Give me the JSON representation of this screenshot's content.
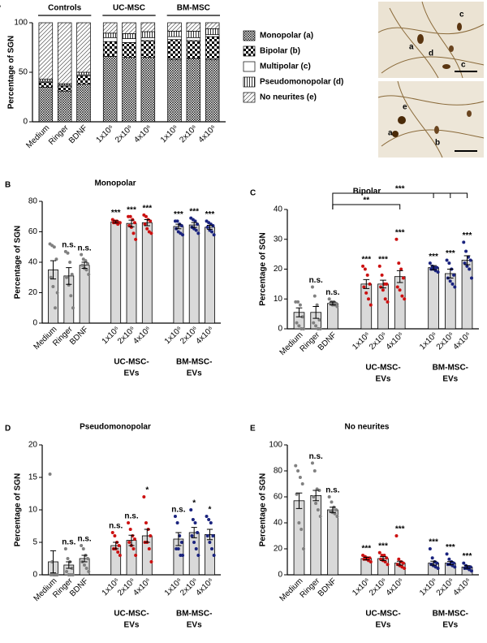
{
  "chart_data": [
    {
      "type": "stacked_bar",
      "label": "A",
      "ylabel": "Percentage of SGN",
      "categories": [
        "Medium",
        "Ringer",
        "BDNF",
        "1x10⁶",
        "2x10⁶",
        "4x10⁶",
        "1x10⁶",
        "2x10⁶",
        "4x10⁶"
      ],
      "groups": [
        "Controls",
        "UC-MSC",
        "BM-MSC"
      ],
      "ylim": [
        0,
        100
      ],
      "yticks": [
        0,
        50,
        100
      ],
      "series": [
        {
          "name": "Monopolar (a)",
          "pattern": "crosshatch",
          "values": [
            35,
            31,
            38,
            66,
            65,
            65,
            63,
            64,
            63
          ]
        },
        {
          "name": "Bipolar (b)",
          "pattern": "checker",
          "values": [
            5,
            5,
            8.5,
            15,
            15,
            17,
            20,
            18,
            23
          ]
        },
        {
          "name": "Multipolar (c)",
          "pattern": "blank",
          "values": [
            1,
            1,
            1,
            4,
            4,
            3,
            3,
            3,
            2
          ]
        },
        {
          "name": "Pseudomonopolar (d)",
          "pattern": "vertical",
          "values": [
            2,
            1.5,
            2.5,
            4.5,
            5,
            6,
            5.5,
            6.5,
            6
          ]
        },
        {
          "name": "No neurites (e)",
          "pattern": "diagonal",
          "values": [
            57,
            61.5,
            50,
            10.5,
            11,
            9,
            8.5,
            8.5,
            6
          ]
        }
      ],
      "micrographs": {
        "top": [
          "c",
          "a",
          "d",
          "c"
        ],
        "bottom": [
          "e",
          "a",
          "b"
        ]
      }
    },
    {
      "type": "bar",
      "label": "B",
      "title": "Monopolar",
      "ylabel": "Percentage of SGN",
      "categories": [
        "Medium",
        "Ringer",
        "BDNF",
        "1x10⁶",
        "2x10⁶",
        "4x10⁶",
        "1x10⁶",
        "2x10⁶",
        "4x10⁶"
      ],
      "group_labels": [
        [
          "UC-MSC-",
          "EVs"
        ],
        [
          "BM-MSC-",
          "EVs"
        ]
      ],
      "ylim": [
        0,
        80
      ],
      "yticks": [
        0,
        20,
        40,
        60,
        80
      ],
      "bar_color": "#d9d9d9",
      "point_colors": [
        "#808080",
        "#cc1111",
        "#1a237e"
      ],
      "values": [
        35,
        31,
        38,
        66.5,
        65.5,
        66,
        63.5,
        64.5,
        63
      ],
      "errors": [
        6,
        5.5,
        2,
        0.7,
        2.2,
        2,
        1.5,
        1.6,
        1.3
      ],
      "significance": [
        null,
        "n.s.",
        "n.s.",
        "***",
        "***",
        "***",
        "***",
        "***",
        "***"
      ],
      "points": [
        [
          52,
          51,
          50,
          42,
          30,
          24,
          10,
          20
        ],
        [
          47,
          46,
          40,
          32,
          30,
          25,
          18,
          10
        ],
        [
          45,
          42,
          41,
          39,
          38,
          36,
          35,
          32
        ],
        [
          68,
          67,
          67,
          66,
          66,
          66,
          65,
          66
        ],
        [
          70,
          70,
          68,
          66,
          64,
          63,
          59,
          55
        ],
        [
          71,
          70,
          68,
          67,
          65,
          62,
          60,
          59
        ],
        [
          67,
          67,
          65,
          64,
          62,
          60,
          59,
          58
        ],
        [
          69,
          68,
          67,
          65,
          63,
          62,
          61,
          59
        ],
        [
          67,
          66,
          65,
          64,
          63,
          61,
          60,
          58
        ]
      ]
    },
    {
      "type": "bar",
      "label": "C",
      "title": "Bipolar",
      "ylabel": "Percentage of SGN",
      "categories": [
        "Medium",
        "Ringer",
        "BDNF",
        "1x10⁶",
        "2x10⁶",
        "4x10⁶",
        "1x10⁶",
        "2x10⁶",
        "4x10⁶"
      ],
      "group_labels": [
        [
          "UC-MSC-",
          "EVs"
        ],
        [
          "BM-MSC-",
          "EVs"
        ]
      ],
      "ylim": [
        0,
        40
      ],
      "yticks": [
        0,
        10,
        20,
        30,
        40
      ],
      "bar_color": "#d9d9d9",
      "point_colors": [
        "#808080",
        "#cc1111",
        "#1a237e"
      ],
      "values": [
        5.5,
        5.5,
        8.5,
        15,
        15,
        17.5,
        20.5,
        18.5,
        23
      ],
      "errors": [
        1.5,
        2,
        0.5,
        1.5,
        1.3,
        2,
        0.7,
        1.5,
        1.5
      ],
      "significance": [
        null,
        "n.s.",
        "n.s.",
        "***",
        "***",
        "***",
        "***",
        "***",
        "***"
      ],
      "comparisons": [
        "**",
        "***"
      ],
      "points": [
        [
          9,
          9,
          8,
          4,
          2,
          1,
          0,
          0
        ],
        [
          14,
          11,
          8,
          3,
          2,
          1,
          0,
          0
        ],
        [
          10,
          9,
          9,
          8.5,
          8.5,
          8,
          8,
          7.5
        ],
        [
          21,
          20,
          18,
          15,
          14,
          12,
          10,
          8
        ],
        [
          21,
          18,
          15,
          15,
          14,
          13,
          10,
          9
        ],
        [
          30,
          22,
          20,
          17,
          14,
          13,
          11,
          10
        ],
        [
          22,
          21,
          20.5,
          20.5,
          20,
          20,
          19.5,
          19
        ],
        [
          23,
          22,
          20,
          18,
          17,
          16,
          15,
          14
        ],
        [
          29,
          26,
          24,
          23,
          22,
          21,
          20,
          17
        ]
      ]
    },
    {
      "type": "bar",
      "label": "D",
      "title": "Pseudomonopolar",
      "ylabel": "Percentage of SGN",
      "categories": [
        "Medium",
        "Ringer",
        "BDNF",
        "1x10⁶",
        "2x10⁶",
        "4x10⁶",
        "1x10⁶",
        "2x10⁶",
        "4x10⁶"
      ],
      "group_labels": [
        [
          "UC-MSC-",
          "EVs"
        ],
        [
          "BM-MSC-",
          "EVs"
        ]
      ],
      "ylim": [
        0,
        20
      ],
      "yticks": [
        0,
        5,
        10,
        15,
        20
      ],
      "bar_color": "#d9d9d9",
      "point_colors": [
        "#808080",
        "#cc1111",
        "#1a237e"
      ],
      "values": [
        2,
        1.5,
        2.5,
        4.5,
        5.3,
        6,
        5.5,
        6.5,
        6.2
      ],
      "errors": [
        1.7,
        0.5,
        0.5,
        0.5,
        0.8,
        1,
        1,
        0.8,
        0.8
      ],
      "significance": [
        null,
        "n.s.",
        "n.s.",
        "n.s.",
        "n.s.",
        "*",
        "n.s.",
        "*",
        "*"
      ],
      "points": [
        [
          15.5,
          2,
          0,
          0,
          0,
          0,
          0,
          0
        ],
        [
          4,
          2.5,
          2,
          1,
          0.5,
          0,
          0,
          0
        ],
        [
          4.5,
          4,
          3,
          2.5,
          2,
          1.5,
          1,
          0.5
        ],
        [
          6.5,
          6,
          5,
          4.5,
          4,
          4,
          3.5,
          3
        ],
        [
          8,
          7,
          6,
          5.5,
          5,
          4.5,
          4,
          3
        ],
        [
          12,
          8,
          7,
          6,
          5,
          5,
          4,
          2
        ],
        [
          9,
          8,
          6,
          5,
          4,
          4,
          3,
          3
        ],
        [
          10,
          8.5,
          8,
          6.5,
          6,
          5,
          4,
          3
        ],
        [
          9,
          8.5,
          8,
          6,
          6,
          5,
          4,
          3
        ]
      ]
    },
    {
      "type": "bar",
      "label": "E",
      "title": "No neurites",
      "ylabel": "Percentage of SGN",
      "categories": [
        "Medium",
        "Ringer",
        "BDNF",
        "1x10⁶",
        "2x10⁶",
        "4x10⁶",
        "1x10⁶",
        "2x10⁶",
        "4x10⁶"
      ],
      "group_labels": [
        [
          "UC-MSC-",
          "EVs"
        ],
        [
          "BM-MSC-",
          "EVs"
        ]
      ],
      "ylim": [
        0,
        100
      ],
      "yticks": [
        0,
        20,
        40,
        60,
        80,
        100
      ],
      "bar_color": "#d9d9d9",
      "point_colors": [
        "#808080",
        "#cc1111",
        "#1a237e"
      ],
      "values": [
        57,
        61,
        50,
        12.5,
        12.5,
        9,
        9,
        9,
        6
      ],
      "errors": [
        6,
        4,
        2,
        1,
        1.5,
        1.5,
        1.5,
        1.2,
        1
      ],
      "significance": [
        null,
        "n.s.",
        "n.s.",
        "***",
        "***",
        "***",
        "***",
        "***",
        "***"
      ],
      "points": [
        [
          84,
          80,
          75,
          70,
          62,
          40,
          35,
          20
        ],
        [
          86,
          80,
          66,
          65,
          60,
          55,
          50,
          45
        ],
        [
          60,
          56,
          52,
          50,
          49,
          48,
          47,
          45
        ],
        [
          15,
          14,
          13,
          13,
          12,
          12,
          11,
          10
        ],
        [
          17,
          15,
          15,
          13,
          12,
          11,
          10,
          8
        ],
        [
          30,
          12,
          10,
          9,
          8,
          7,
          6,
          5
        ],
        [
          20,
          13,
          10,
          9,
          8,
          7,
          6,
          5
        ],
        [
          16,
          12,
          10,
          9,
          8,
          8,
          7,
          6
        ],
        [
          9,
          7,
          6,
          6,
          5,
          5,
          4,
          3
        ]
      ]
    }
  ]
}
